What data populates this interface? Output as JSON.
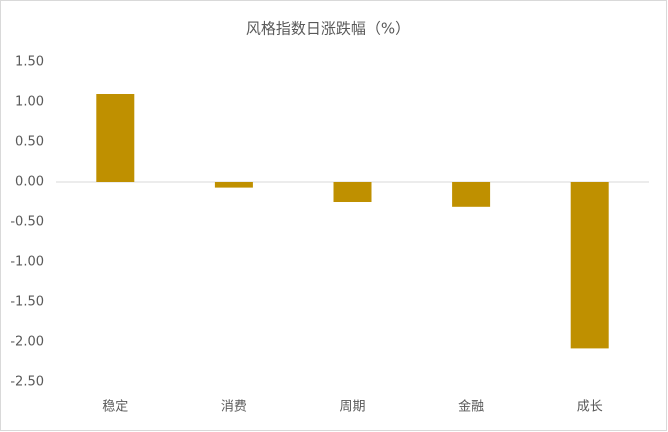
{
  "chart_data": {
    "type": "bar",
    "title": "风格指数日涨跌幅（%）",
    "categories": [
      "稳定",
      "消费",
      "周期",
      "金融",
      "成长"
    ],
    "values": [
      1.1,
      -0.07,
      -0.25,
      -0.31,
      -2.08
    ],
    "color": "#bf9000",
    "ylim": [
      -2.5,
      1.5
    ],
    "yticks": [
      {
        "value": 1.5,
        "label": "1.50"
      },
      {
        "value": 1,
        "label": "1.00"
      },
      {
        "value": 0.5,
        "label": "0.50"
      },
      {
        "value": 0,
        "label": "0.00"
      },
      {
        "value": -0.5,
        "label": "-0.50"
      },
      {
        "value": -1,
        "label": "-1.00"
      },
      {
        "value": -1.5,
        "label": "-1.50"
      },
      {
        "value": -2,
        "label": "-2.00"
      },
      {
        "value": -2.5,
        "label": "-2.50"
      }
    ],
    "grid": false
  }
}
